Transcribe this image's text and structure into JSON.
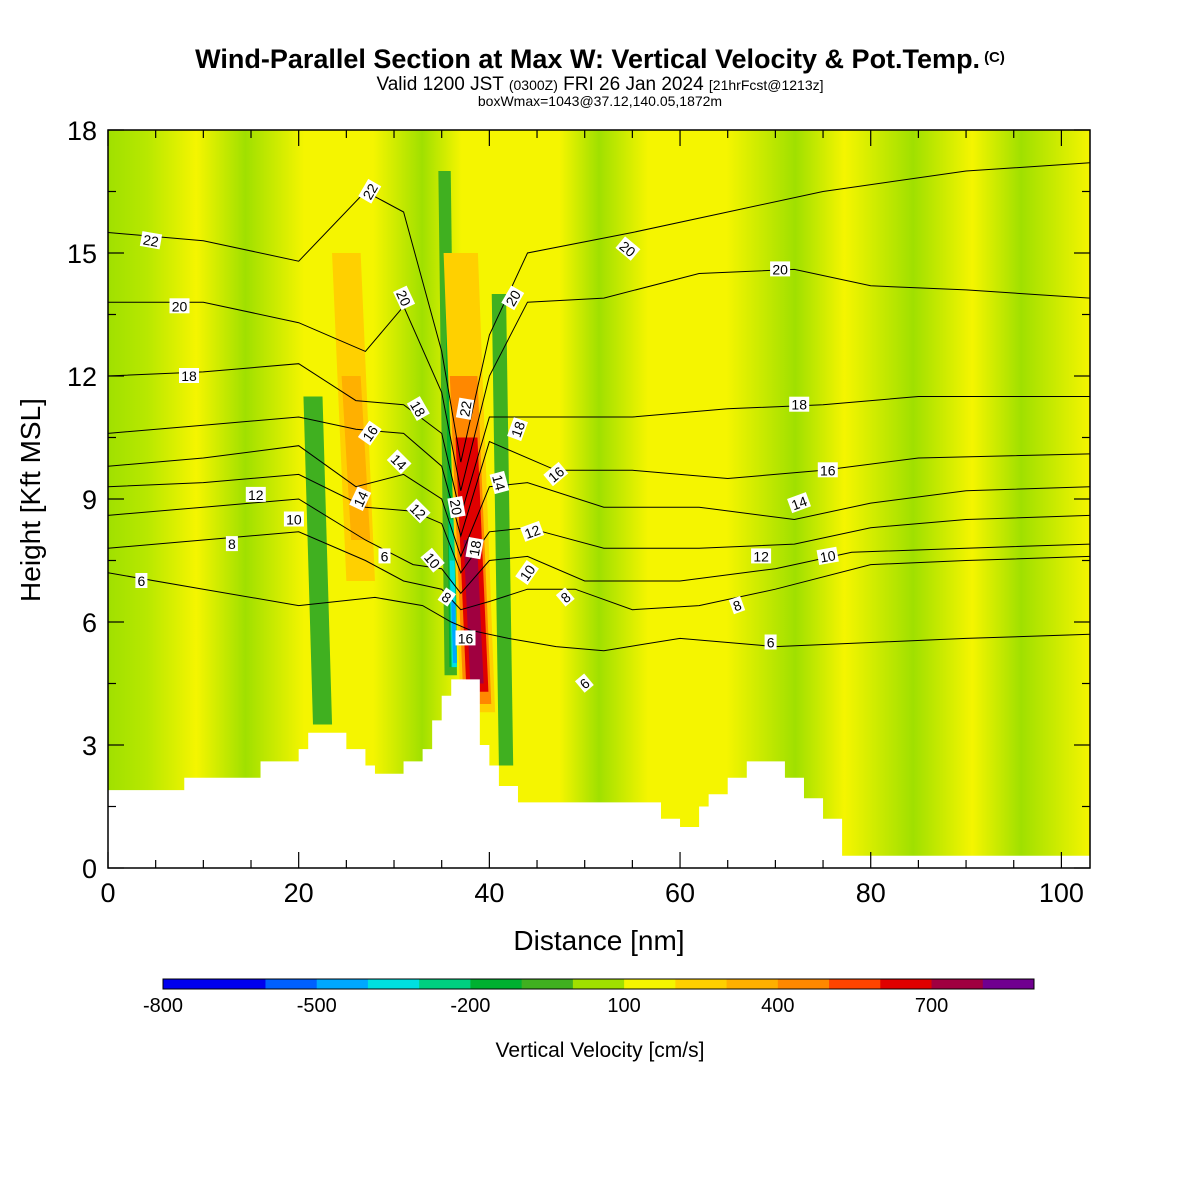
{
  "header": {
    "title": "Wind-Parallel Section at Max W: Vertical Velocity & Pot.Temp.",
    "copyright": "(C)",
    "valid_prefix": "Valid 1200 JST",
    "valid_utc": "(0300Z)",
    "valid_date": "FRI 26 Jan 2024",
    "forecast": "[21hrFcst@1213z]",
    "box_info": "boxWmax=1043@37.12,140.05,1872m"
  },
  "chart_data": {
    "type": "heatmap",
    "xlabel": "Distance [nm]",
    "ylabel": "Height [Kft MSL]",
    "xlim": [
      0,
      103
    ],
    "ylim": [
      0,
      18
    ],
    "x_ticks": [
      "0",
      "20",
      "40",
      "60",
      "80",
      "100"
    ],
    "y_ticks": [
      "0",
      "3",
      "6",
      "9",
      "12",
      "15",
      "18"
    ],
    "grid": false,
    "colorbar": {
      "title": "Vertical Velocity [cm/s]",
      "tick_labels": [
        "-800",
        "-500",
        "-200",
        "100",
        "400",
        "700"
      ],
      "colors": [
        "#0000ee",
        "#0060ff",
        "#00a8ff",
        "#00e0e0",
        "#00d080",
        "#00b030",
        "#40b020",
        "#a0e000",
        "#f5f500",
        "#ffd000",
        "#ffb000",
        "#ff8800",
        "#ff4400",
        "#e00000",
        "#a00040",
        "#700090"
      ]
    },
    "terrain_kft": [
      [
        0,
        1.9
      ],
      [
        7,
        1.9
      ],
      [
        8,
        2.2
      ],
      [
        14,
        2.2
      ],
      [
        16,
        2.6
      ],
      [
        20,
        2.9
      ],
      [
        21,
        3.3
      ],
      [
        23,
        3.3
      ],
      [
        25,
        2.9
      ],
      [
        27,
        2.5
      ],
      [
        28,
        2.3
      ],
      [
        30,
        2.3
      ],
      [
        31,
        2.6
      ],
      [
        33,
        2.9
      ],
      [
        34,
        3.6
      ],
      [
        35,
        4.2
      ],
      [
        36,
        4.6
      ],
      [
        38,
        4.6
      ],
      [
        39,
        3.0
      ],
      [
        40,
        2.5
      ],
      [
        41,
        2.0
      ],
      [
        43,
        1.6
      ],
      [
        55,
        1.6
      ],
      [
        58,
        1.2
      ],
      [
        60,
        1.0
      ],
      [
        62,
        1.5
      ],
      [
        63,
        1.8
      ],
      [
        65,
        2.2
      ],
      [
        67,
        2.6
      ],
      [
        69,
        2.6
      ],
      [
        71,
        2.2
      ],
      [
        73,
        1.7
      ],
      [
        75,
        1.2
      ],
      [
        77,
        0.3
      ],
      [
        103,
        0.3
      ]
    ],
    "theta_contours": [
      {
        "label": "6",
        "points": [
          [
            0,
            7.2
          ],
          [
            10,
            6.8
          ],
          [
            20,
            6.4
          ],
          [
            28,
            6.6
          ],
          [
            33,
            6.4
          ],
          [
            36,
            6.0
          ],
          [
            38,
            5.8
          ],
          [
            42,
            5.6
          ],
          [
            47,
            5.4
          ],
          [
            52,
            5.3
          ],
          [
            60,
            5.6
          ],
          [
            70,
            5.4
          ],
          [
            80,
            5.5
          ],
          [
            90,
            5.6
          ],
          [
            103,
            5.7
          ]
        ]
      },
      {
        "label": "8",
        "points": [
          [
            0,
            7.8
          ],
          [
            10,
            8.0
          ],
          [
            20,
            8.2
          ],
          [
            27,
            7.5
          ],
          [
            31,
            7.0
          ],
          [
            35,
            6.8
          ],
          [
            37,
            6.3
          ],
          [
            40,
            6.5
          ],
          [
            44,
            6.8
          ],
          [
            49,
            6.8
          ],
          [
            55,
            6.3
          ],
          [
            62,
            6.4
          ],
          [
            70,
            6.8
          ],
          [
            80,
            7.4
          ],
          [
            90,
            7.5
          ],
          [
            103,
            7.6
          ]
        ]
      },
      {
        "label": "10",
        "points": [
          [
            0,
            8.6
          ],
          [
            10,
            8.8
          ],
          [
            20,
            9.0
          ],
          [
            27,
            8.0
          ],
          [
            32,
            7.4
          ],
          [
            35,
            7.3
          ],
          [
            37,
            6.7
          ],
          [
            40,
            7.5
          ],
          [
            44,
            7.6
          ],
          [
            50,
            7.0
          ],
          [
            60,
            7.0
          ],
          [
            70,
            7.3
          ],
          [
            78,
            7.7
          ],
          [
            90,
            7.8
          ],
          [
            103,
            7.9
          ]
        ]
      },
      {
        "label": "12",
        "points": [
          [
            0,
            9.3
          ],
          [
            10,
            9.4
          ],
          [
            20,
            9.6
          ],
          [
            27,
            8.8
          ],
          [
            32,
            8.7
          ],
          [
            35,
            8.4
          ],
          [
            37,
            7.2
          ],
          [
            40,
            8.2
          ],
          [
            44,
            8.3
          ],
          [
            52,
            7.8
          ],
          [
            62,
            7.8
          ],
          [
            72,
            7.9
          ],
          [
            80,
            8.3
          ],
          [
            90,
            8.5
          ],
          [
            103,
            8.6
          ]
        ]
      },
      {
        "label": "14",
        "points": [
          [
            0,
            9.8
          ],
          [
            10,
            10.0
          ],
          [
            20,
            10.3
          ],
          [
            26,
            9.3
          ],
          [
            31,
            9.6
          ],
          [
            35,
            9.0
          ],
          [
            37,
            7.6
          ],
          [
            40,
            9.3
          ],
          [
            44,
            9.4
          ],
          [
            52,
            8.8
          ],
          [
            62,
            8.8
          ],
          [
            72,
            8.5
          ],
          [
            80,
            8.9
          ],
          [
            90,
            9.2
          ],
          [
            103,
            9.3
          ]
        ]
      },
      {
        "label": "16",
        "points": [
          [
            0,
            10.6
          ],
          [
            10,
            10.8
          ],
          [
            20,
            11.0
          ],
          [
            26,
            10.7
          ],
          [
            31,
            10.6
          ],
          [
            35,
            9.8
          ],
          [
            37,
            8.1
          ],
          [
            40,
            10.4
          ],
          [
            47,
            9.7
          ],
          [
            55,
            9.7
          ],
          [
            65,
            9.5
          ],
          [
            75,
            9.7
          ],
          [
            85,
            10.0
          ],
          [
            103,
            10.1
          ]
        ]
      },
      {
        "label": "18",
        "points": [
          [
            0,
            12.0
          ],
          [
            10,
            12.1
          ],
          [
            20,
            12.3
          ],
          [
            26,
            11.4
          ],
          [
            31,
            11.3
          ],
          [
            35,
            10.6
          ],
          [
            37,
            8.6
          ],
          [
            40,
            11.0
          ],
          [
            47,
            11.0
          ],
          [
            55,
            11.0
          ],
          [
            65,
            11.2
          ],
          [
            75,
            11.3
          ],
          [
            85,
            11.5
          ],
          [
            103,
            11.5
          ]
        ]
      },
      {
        "label": "20",
        "points": [
          [
            0,
            13.8
          ],
          [
            10,
            13.8
          ],
          [
            20,
            13.3
          ],
          [
            27,
            12.6
          ],
          [
            31,
            13.7
          ],
          [
            35,
            11.6
          ],
          [
            37,
            9.2
          ],
          [
            40,
            12.0
          ],
          [
            44,
            13.8
          ],
          [
            52,
            13.9
          ],
          [
            62,
            14.5
          ],
          [
            72,
            14.6
          ],
          [
            80,
            14.2
          ],
          [
            90,
            14.1
          ],
          [
            103,
            13.9
          ]
        ]
      },
      {
        "label": "22",
        "points": [
          [
            0,
            15.5
          ],
          [
            10,
            15.3
          ],
          [
            20,
            14.8
          ],
          [
            27,
            16.5
          ],
          [
            31,
            16.0
          ],
          [
            35,
            12.6
          ],
          [
            37,
            9.9
          ],
          [
            40,
            13.0
          ],
          [
            44,
            15.0
          ],
          [
            55,
            15.5
          ],
          [
            65,
            16.0
          ],
          [
            75,
            16.5
          ],
          [
            90,
            17.0
          ],
          [
            103,
            17.2
          ]
        ]
      }
    ],
    "contour_labels": [
      {
        "text": "22",
        "x": 4.5,
        "y": 15.3,
        "angle": 10
      },
      {
        "text": "20",
        "x": 7.5,
        "y": 13.7,
        "angle": 0
      },
      {
        "text": "18",
        "x": 8.5,
        "y": 12.0,
        "angle": 0
      },
      {
        "text": "12",
        "x": 15.5,
        "y": 9.1,
        "angle": 0
      },
      {
        "text": "10",
        "x": 19.5,
        "y": 8.5,
        "angle": 0
      },
      {
        "text": "8",
        "x": 13,
        "y": 7.9,
        "angle": 0
      },
      {
        "text": "6",
        "x": 3.5,
        "y": 7.0,
        "angle": 0
      },
      {
        "text": "22",
        "x": 27.5,
        "y": 16.5,
        "angle": -60
      },
      {
        "text": "20",
        "x": 31,
        "y": 13.9,
        "angle": 65
      },
      {
        "text": "16",
        "x": 27.5,
        "y": 10.6,
        "angle": -55
      },
      {
        "text": "18",
        "x": 32.5,
        "y": 11.2,
        "angle": 60
      },
      {
        "text": "14",
        "x": 30.5,
        "y": 9.9,
        "angle": 45
      },
      {
        "text": "14",
        "x": 26.5,
        "y": 9.0,
        "angle": -65
      },
      {
        "text": "12",
        "x": 32.5,
        "y": 8.7,
        "angle": 45
      },
      {
        "text": "6",
        "x": 29,
        "y": 7.6,
        "angle": 0
      },
      {
        "text": "10",
        "x": 34,
        "y": 7.5,
        "angle": 50
      },
      {
        "text": "8",
        "x": 35.5,
        "y": 6.6,
        "angle": 35
      },
      {
        "text": "22",
        "x": 37.5,
        "y": 11.2,
        "angle": -80
      },
      {
        "text": "20",
        "x": 36.5,
        "y": 8.8,
        "angle": 80
      },
      {
        "text": "18",
        "x": 38.5,
        "y": 7.8,
        "angle": -80
      },
      {
        "text": "16",
        "x": 37.5,
        "y": 5.6,
        "angle": 0
      },
      {
        "text": "20",
        "x": 42.5,
        "y": 13.9,
        "angle": -60
      },
      {
        "text": "18",
        "x": 43,
        "y": 10.7,
        "angle": -70
      },
      {
        "text": "14",
        "x": 41,
        "y": 9.4,
        "angle": 75
      },
      {
        "text": "12",
        "x": 44.5,
        "y": 8.2,
        "angle": -20
      },
      {
        "text": "10",
        "x": 44,
        "y": 7.2,
        "angle": -55
      },
      {
        "text": "16",
        "x": 47,
        "y": 9.6,
        "angle": -40
      },
      {
        "text": "8",
        "x": 48,
        "y": 6.6,
        "angle": -40
      },
      {
        "text": "6",
        "x": 50,
        "y": 4.5,
        "angle": -40
      },
      {
        "text": "20",
        "x": 54.5,
        "y": 15.1,
        "angle": 40
      },
      {
        "text": "20",
        "x": 70.5,
        "y": 14.6,
        "angle": 0
      },
      {
        "text": "18",
        "x": 72.5,
        "y": 11.3,
        "angle": 0
      },
      {
        "text": "16",
        "x": 75.5,
        "y": 9.7,
        "angle": 0
      },
      {
        "text": "14",
        "x": 72.5,
        "y": 8.9,
        "angle": -20
      },
      {
        "text": "12",
        "x": 68.5,
        "y": 7.6,
        "angle": 0
      },
      {
        "text": "10",
        "x": 75.5,
        "y": 7.6,
        "angle": -10
      },
      {
        "text": "8",
        "x": 66,
        "y": 6.4,
        "angle": -20
      },
      {
        "text": "6",
        "x": 69.5,
        "y": 5.5,
        "angle": 0
      }
    ],
    "field_bands": [
      {
        "color": "#40b020",
        "x0": 35.3,
        "x1": 36.6,
        "y_top": 17.0,
        "y_bot": 4.7
      },
      {
        "color": "#00b030",
        "x0": 35.8,
        "x1": 36.6,
        "y_top": 14.0,
        "y_bot": 4.9
      },
      {
        "color": "#00d080",
        "x0": 36.0,
        "x1": 36.6,
        "y_top": 8.5,
        "y_bot": 4.9
      },
      {
        "color": "#00e0e0",
        "x0": 36.1,
        "x1": 36.6,
        "y_top": 7.5,
        "y_bot": 4.9
      },
      {
        "color": "#00a8ff",
        "x0": 36.2,
        "x1": 36.6,
        "y_top": 6.5,
        "y_bot": 5.0
      },
      {
        "color": "#ffd000",
        "x0": 37.0,
        "x1": 40.6,
        "y_top": 15.0,
        "y_bot": 3.8
      },
      {
        "color": "#ff8800",
        "x0": 37.3,
        "x1": 40.2,
        "y_top": 12.0,
        "y_bot": 4.0
      },
      {
        "color": "#e00000",
        "x0": 37.6,
        "x1": 39.9,
        "y_top": 10.5,
        "y_bot": 4.3
      },
      {
        "color": "#a00040",
        "x0": 38.0,
        "x1": 39.4,
        "y_top": 8.0,
        "y_bot": 4.5
      },
      {
        "color": "#ffd000",
        "x0": 25.0,
        "x1": 28.0,
        "y_top": 15.0,
        "y_bot": 7.0
      },
      {
        "color": "#ffb000",
        "x0": 25.5,
        "x1": 27.5,
        "y_top": 12.0,
        "y_bot": 8.0
      },
      {
        "color": "#40b020",
        "x0": 21.5,
        "x1": 23.5,
        "y_top": 11.5,
        "y_bot": 3.5
      },
      {
        "color": "#40b020",
        "x0": 41.0,
        "x1": 42.5,
        "y_top": 14.0,
        "y_bot": 2.5
      }
    ]
  }
}
